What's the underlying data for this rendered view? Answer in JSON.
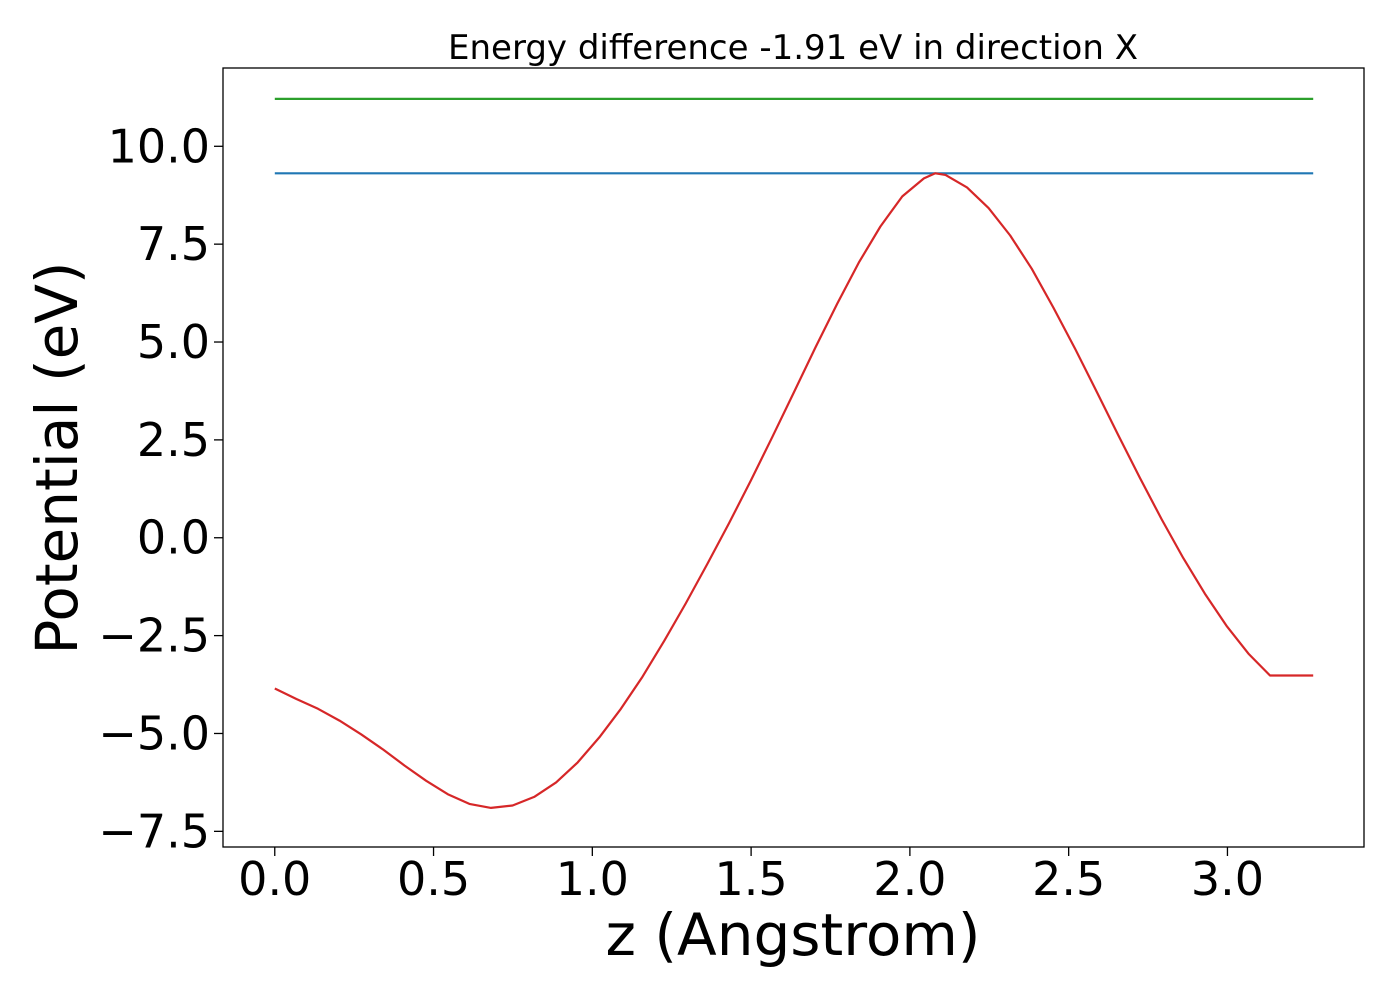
{
  "chart_data": {
    "type": "line",
    "title": "Energy difference -1.91 eV in direction X",
    "xlabel": "z (Angstrom)",
    "ylabel": "Potential (eV)",
    "xlim": [
      -0.163,
      3.43
    ],
    "ylim": [
      -7.9,
      12.0
    ],
    "x_ticks": [
      0.0,
      0.5,
      1.0,
      1.5,
      2.0,
      2.5,
      3.0
    ],
    "x_tick_labels": [
      "0.0",
      "0.5",
      "1.0",
      "1.5",
      "2.0",
      "2.5",
      "3.0"
    ],
    "y_ticks": [
      -7.5,
      -5.0,
      -2.5,
      0.0,
      2.5,
      5.0,
      7.5,
      10.0
    ],
    "y_tick_labels": [
      "−7.5",
      "−5.0",
      "−2.5",
      "0.0",
      "2.5",
      "5.0",
      "7.5",
      "10.0"
    ],
    "grid": false,
    "legend": "none",
    "series": [
      {
        "color": "#2ca02c",
        "x": [
          0.0,
          3.27
        ],
        "y": [
          11.21,
          11.21
        ]
      },
      {
        "color": "#1f77b4",
        "x": [
          0.0,
          3.27
        ],
        "y": [
          9.31,
          9.31
        ]
      },
      {
        "color": "#d62728",
        "x": [
          0.0,
          0.068,
          0.136,
          0.204,
          0.272,
          0.341,
          0.409,
          0.477,
          0.545,
          0.613,
          0.681,
          0.749,
          0.817,
          0.886,
          0.954,
          1.022,
          1.09,
          1.158,
          1.226,
          1.294,
          1.362,
          1.431,
          1.499,
          1.567,
          1.635,
          1.703,
          1.771,
          1.839,
          1.907,
          1.976,
          2.044,
          2.08,
          2.112,
          2.18,
          2.248,
          2.316,
          2.384,
          2.452,
          2.521,
          2.589,
          2.657,
          2.725,
          2.793,
          2.861,
          2.929,
          2.997,
          3.066,
          3.134,
          3.202,
          3.27
        ],
        "y": [
          -3.85,
          -4.12,
          -4.37,
          -4.67,
          -5.02,
          -5.41,
          -5.82,
          -6.21,
          -6.55,
          -6.8,
          -6.9,
          -6.84,
          -6.62,
          -6.25,
          -5.74,
          -5.1,
          -4.37,
          -3.55,
          -2.64,
          -1.68,
          -0.67,
          0.38,
          1.46,
          2.58,
          3.72,
          4.87,
          5.98,
          7.03,
          7.95,
          8.72,
          9.18,
          9.31,
          9.27,
          8.95,
          8.42,
          7.72,
          6.87,
          5.88,
          4.82,
          3.72,
          2.61,
          1.52,
          0.47,
          -0.52,
          -1.43,
          -2.25,
          -2.96,
          -3.52,
          -3.52,
          -3.52
        ]
      }
    ]
  }
}
